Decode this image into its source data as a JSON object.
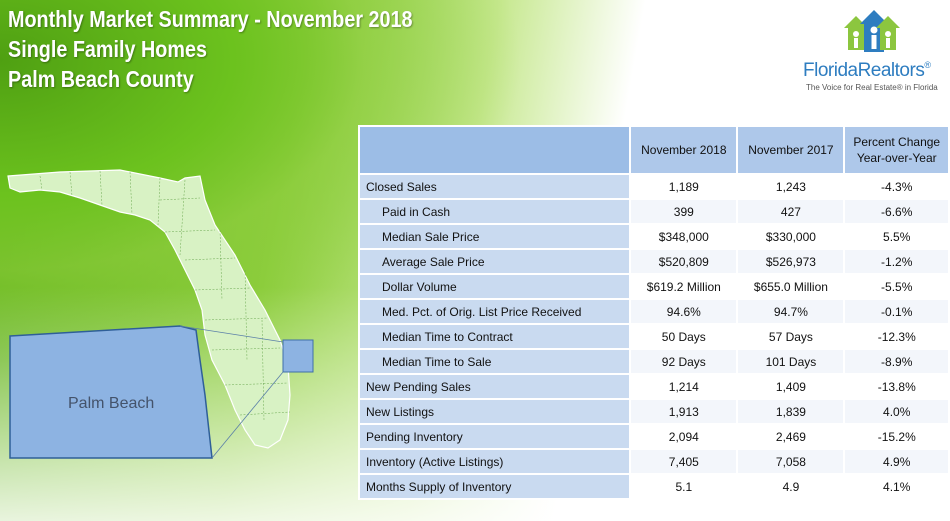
{
  "header": {
    "title_line1": "Monthly Market Summary - November 2018",
    "title_line2": "Single Family Homes",
    "title_line3": "Palm Beach County"
  },
  "logo": {
    "name": "FloridaRealtors",
    "registered_mark": "®",
    "tagline": "The Voice for Real Estate® in Florida"
  },
  "map": {
    "county_label": "Palm Beach",
    "highlight_color": "#8db3e2",
    "state_color": "#d4f0c0"
  },
  "table": {
    "columns": [
      "November 2018",
      "November 2017",
      "Percent Change Year-over-Year"
    ],
    "rows": [
      {
        "label": "Closed Sales",
        "nov2018": "1,189",
        "nov2017": "1,243",
        "change": "-4.3%"
      },
      {
        "label": "Paid in Cash",
        "nov2018": "399",
        "nov2017": "427",
        "change": "-6.6%"
      },
      {
        "label": "Median Sale Price",
        "nov2018": "$348,000",
        "nov2017": "$330,000",
        "change": "5.5%"
      },
      {
        "label": "Average Sale Price",
        "nov2018": "$520,809",
        "nov2017": "$526,973",
        "change": "-1.2%"
      },
      {
        "label": "Dollar Volume",
        "nov2018": "$619.2 Million",
        "nov2017": "$655.0 Million",
        "change": "-5.5%"
      },
      {
        "label": "Med. Pct. of Orig. List Price Received",
        "nov2018": "94.6%",
        "nov2017": "94.7%",
        "change": "-0.1%"
      },
      {
        "label": "Median Time to Contract",
        "nov2018": "50 Days",
        "nov2017": "57 Days",
        "change": "-12.3%"
      },
      {
        "label": "Median Time to Sale",
        "nov2018": "92 Days",
        "nov2017": "101 Days",
        "change": "-8.9%"
      },
      {
        "label": "New Pending Sales",
        "nov2018": "1,214",
        "nov2017": "1,409",
        "change": "-13.8%"
      },
      {
        "label": "New Listings",
        "nov2018": "1,913",
        "nov2017": "1,839",
        "change": "4.0%"
      },
      {
        "label": "Pending Inventory",
        "nov2018": "2,094",
        "nov2017": "2,469",
        "change": "-15.2%"
      },
      {
        "label": "Inventory (Active Listings)",
        "nov2018": "7,405",
        "nov2017": "7,058",
        "change": "4.9%"
      },
      {
        "label": "Months Supply of Inventory",
        "nov2018": "5.1",
        "nov2017": "4.9",
        "change": "4.1%"
      }
    ]
  }
}
